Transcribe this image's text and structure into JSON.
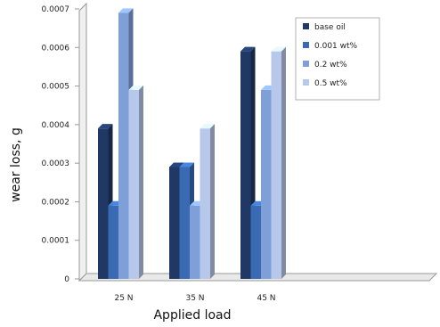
{
  "chart_data": {
    "type": "bar",
    "categories": [
      "25 N",
      "35 N",
      "45 N"
    ],
    "series": [
      {
        "name": "base oil",
        "values": [
          0.00039,
          0.00029,
          0.00059
        ],
        "color": "#1f3864"
      },
      {
        "name": "0.001 wt%",
        "values": [
          0.00019,
          0.00029,
          0.00019
        ],
        "color": "#3a6ab4"
      },
      {
        "name": "0.2 wt%",
        "values": [
          0.00069,
          0.00019,
          0.00049
        ],
        "color": "#7f9fd8"
      },
      {
        "name": "0.5 wt%",
        "values": [
          0.00049,
          0.00039,
          0.00059
        ],
        "color": "#b8c8ea"
      }
    ],
    "xlabel": "Applied load",
    "ylabel": "wear loss, g",
    "ylim": [
      0,
      0.0007
    ],
    "yticks": [
      "0",
      "0.0001",
      "0.0002",
      "0.0003",
      "0.0004",
      "0.0005",
      "0.0006",
      "0.0007"
    ],
    "legend_position": "top-right",
    "grid": false
  }
}
